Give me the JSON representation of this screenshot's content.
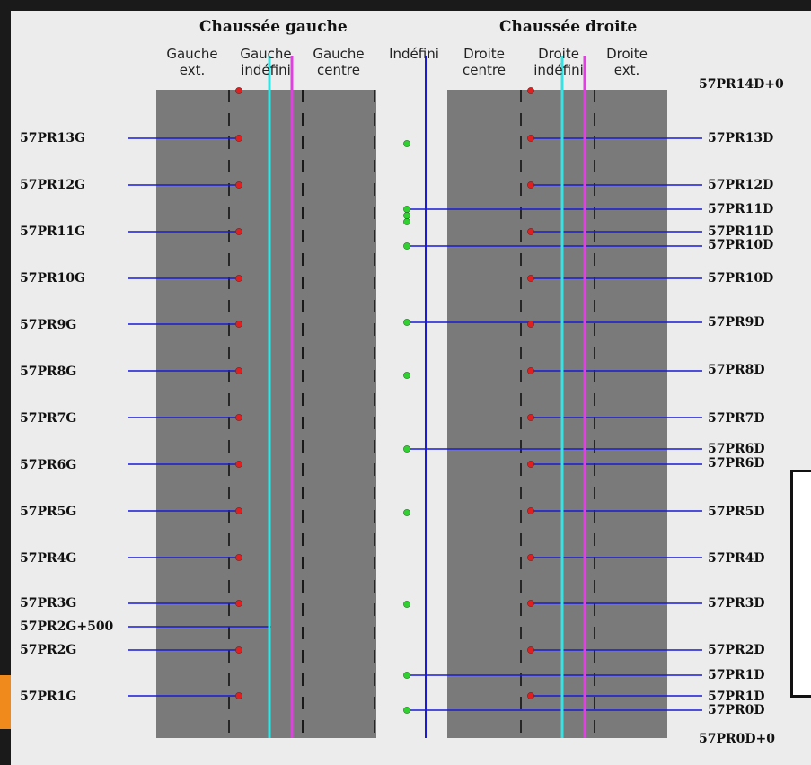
{
  "titles": {
    "left": "Chaussée gauche",
    "right": "Chaussée droite"
  },
  "lanes": {
    "gauche_ext": "Gauche\next.",
    "gauche_indefini": "Gauche\nindéfini",
    "gauche_centre": "Gauche\ncentre",
    "indefini": "Indéfini",
    "droite_centre": "Droite\ncentre",
    "droite_indefini": "Droite\nindéfini",
    "droite_ext": "Droite\next."
  },
  "labels_left": [
    "57PR13G",
    "57PR12G",
    "57PR11G",
    "57PR10G",
    "57PR9G",
    "57PR8G",
    "57PR7G",
    "57PR6G",
    "57PR5G",
    "57PR4G",
    "57PR3G",
    "57PR2G+500",
    "57PR2G",
    "57PR1G"
  ],
  "labels_right": [
    "57PR14D+0",
    "57PR13D",
    "57PR12D",
    "57PR11D",
    "57PR11D",
    "57PR10D",
    "57PR10D",
    "57PR9D",
    "57PR8D",
    "57PR7D",
    "57PR6D",
    "57PR6D",
    "57PR5D",
    "57PR4D",
    "57PR3D",
    "57PR2D",
    "57PR1D",
    "57PR1D",
    "57PR0D",
    "57PR0D+0"
  ],
  "colors": {
    "road": "#7a7a7a",
    "cyan_line": "#35e3e3",
    "magenta_line": "#e040e0",
    "blue_line": "#1a1ad8",
    "red_marker": "#e02020",
    "green_marker": "#30d030"
  }
}
